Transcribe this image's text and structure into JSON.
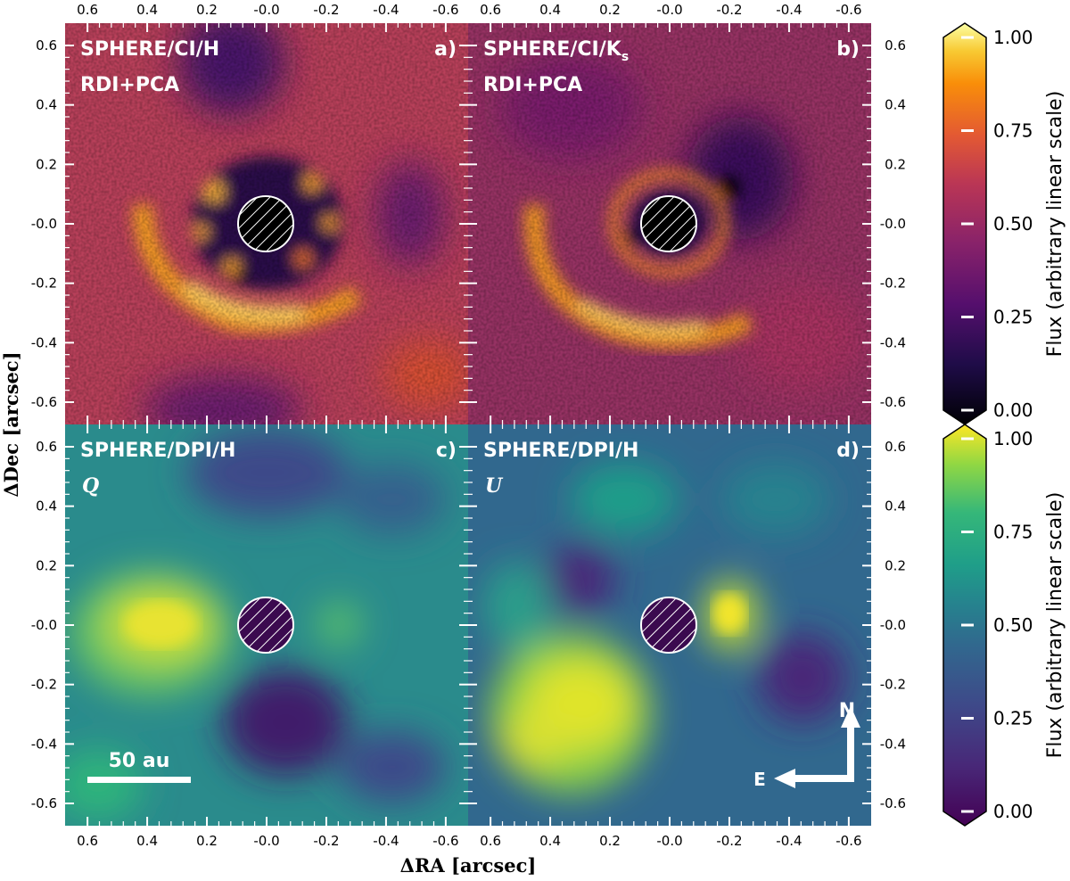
{
  "axis_labels": {
    "x": "ΔRA [arcsec]",
    "y": "ΔDec [arcsec]"
  },
  "x_ticks": [
    "0.6",
    "0.4",
    "0.2",
    "-0.0",
    "-0.2",
    "-0.4",
    "-0.6"
  ],
  "y_ticks": [
    "0.6",
    "0.4",
    "0.2",
    "-0.0",
    "-0.2",
    "-0.4",
    "-0.6"
  ],
  "panels": [
    {
      "id": "a",
      "title": "SPHERE/CI/H",
      "subtitle": "RDI+PCA",
      "letter": "a)",
      "cmap": "inferno"
    },
    {
      "id": "b",
      "title": "SPHERE/CI/K",
      "title_sub": "s",
      "subtitle": "RDI+PCA",
      "letter": "b)",
      "cmap": "inferno"
    },
    {
      "id": "c",
      "title": "SPHERE/DPI/H",
      "subtitle": "Q",
      "letter": "c)",
      "cmap": "viridis"
    },
    {
      "id": "d",
      "title": "SPHERE/DPI/H",
      "subtitle": "U",
      "letter": "d)",
      "cmap": "viridis"
    }
  ],
  "scale_bar": {
    "label": "50 au"
  },
  "compass": {
    "north": "N",
    "east": "E"
  },
  "colorbars": [
    {
      "cmap": "inferno",
      "label": "Flux (arbitrary linear scale)",
      "ticks": [
        "1.00",
        "0.75",
        "0.50",
        "0.25",
        "0.00"
      ]
    },
    {
      "cmap": "viridis",
      "label": "Flux (arbitrary linear scale)",
      "ticks": [
        "1.00",
        "0.75",
        "0.50",
        "0.25",
        "0.00"
      ]
    }
  ]
}
